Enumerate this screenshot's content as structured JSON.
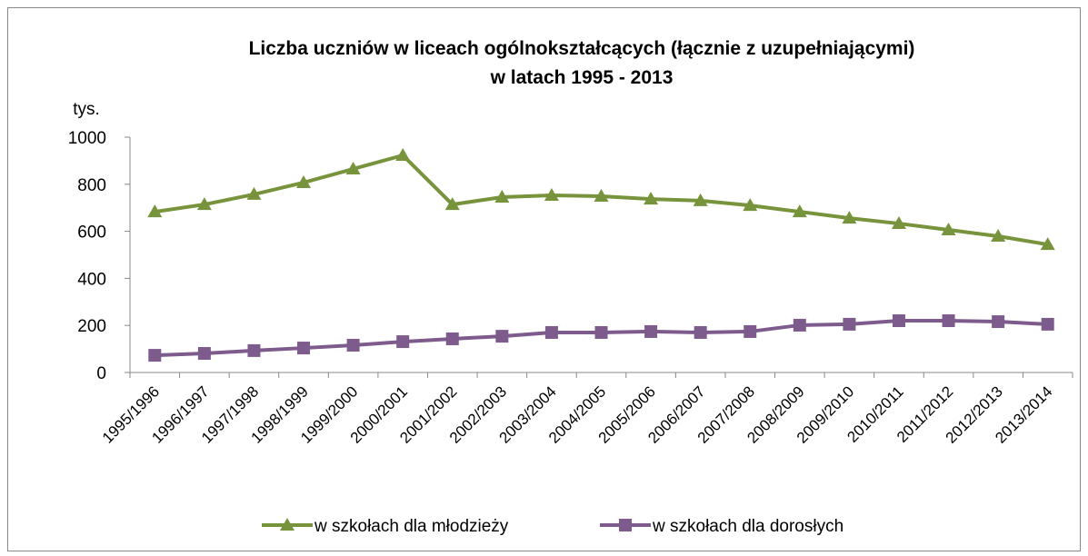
{
  "chart_data": {
    "type": "line",
    "title": [
      "Liczba uczniów w liceach ogólnokształcących (łącznie z uzupełniającymi)",
      "w latach 1995 - 2013"
    ],
    "y_label": "tys.",
    "categories": [
      "1995/1996",
      "1996/1997",
      "1997/1998",
      "1998/1999",
      "1999/2000",
      "2000/2001",
      "2001/2002",
      "2002/2003",
      "2003/2004",
      "2004/2005",
      "2005/2006",
      "2006/2007",
      "2007/2008",
      "2008/2009",
      "2009/2010",
      "2010/2011",
      "2011/2012",
      "2012/2013",
      "2013/2014"
    ],
    "series": [
      {
        "name": "w szkołach dla młodzieży",
        "color": "#77933c",
        "marker": "triangle",
        "values": [
          683,
          714,
          757,
          807,
          865,
          923,
          714,
          745,
          753,
          749,
          737,
          730,
          710,
          683,
          656,
          633,
          606,
          579,
          544
        ]
      },
      {
        "name": "w szkołach dla dorosłych",
        "color": "#7e5b8d",
        "marker": "square",
        "values": [
          73,
          81,
          93,
          104,
          116,
          131,
          143,
          154,
          170,
          170,
          174,
          170,
          174,
          201,
          205,
          220,
          220,
          216,
          205
        ]
      }
    ],
    "ylim": [
      0,
      1000
    ],
    "yticks": [
      0,
      200,
      400,
      600,
      800,
      1000
    ],
    "grid": false,
    "legend": "bottom"
  }
}
